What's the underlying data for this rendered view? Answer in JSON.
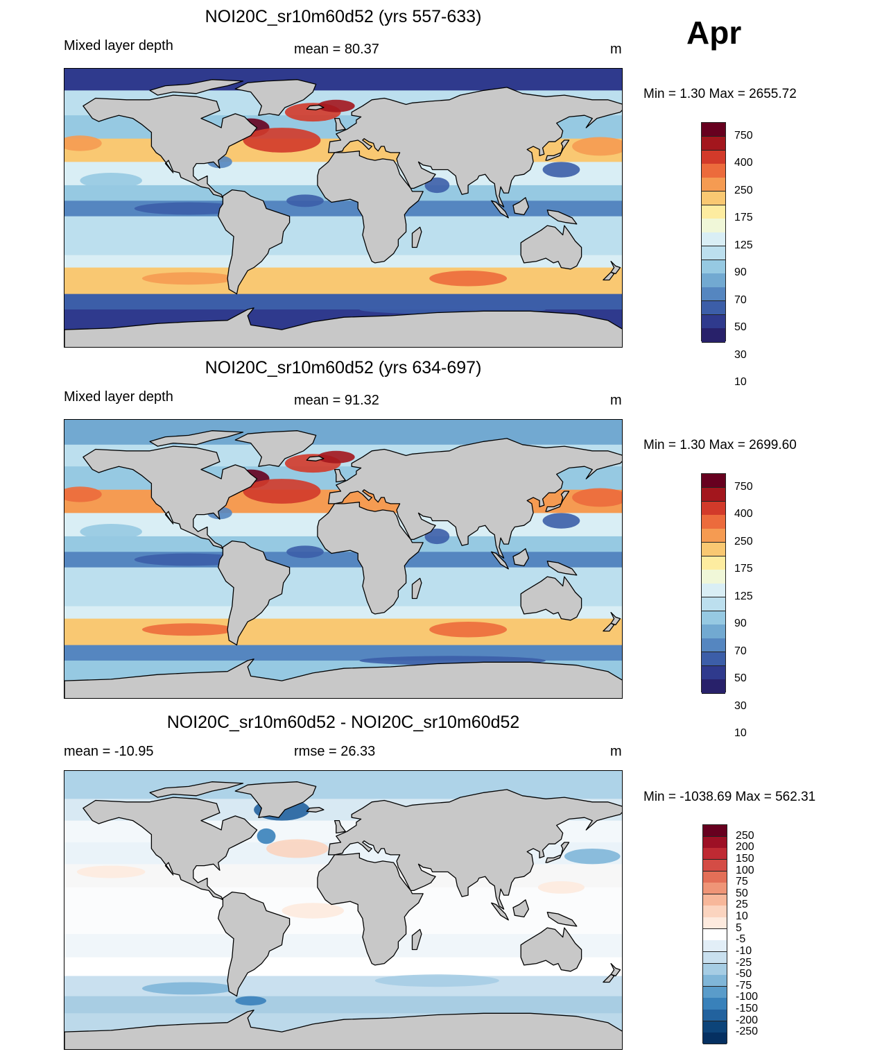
{
  "month": "Apr",
  "units": "m",
  "panels": [
    {
      "title": "NOI20C_sr10m60d52 (yrs 557-633)",
      "left_label": "Mixed layer depth",
      "center_label": "mean =  80.37",
      "minmax": "Min =    1.30 Max = 2655.72",
      "style": "abs"
    },
    {
      "title": "NOI20C_sr10m60d52 (yrs 634-697)",
      "left_label": "Mixed layer depth",
      "center_label": "mean =  91.32",
      "minmax": "Min =    1.30 Max = 2699.60",
      "style": "abs2"
    },
    {
      "title": "NOI20C_sr10m60d52 - NOI20C_sr10m60d52",
      "left_label": "mean = -10.95",
      "center_label": "rmse =  26.33",
      "minmax": "Min = -1038.69 Max = 562.31",
      "style": "diff"
    }
  ],
  "colorbar_abs": {
    "labels": [
      "750",
      "400",
      "250",
      "175",
      "125",
      "90",
      "70",
      "50",
      "30",
      "10"
    ],
    "colors": [
      "#67001f",
      "#a3161d",
      "#d23a2a",
      "#ec6b3c",
      "#f59b52",
      "#f9c872",
      "#fdeca0",
      "#f0f7d8",
      "#d9eef5",
      "#bcdfee",
      "#96c9e2",
      "#72a9d1",
      "#5586c0",
      "#3c5ea8",
      "#2f3a8d",
      "#28216a"
    ]
  },
  "colorbar_diff": {
    "labels": [
      "250",
      "200",
      "150",
      "100",
      "75",
      "50",
      "25",
      "10",
      "5",
      "-5",
      "-10",
      "-25",
      "-50",
      "-75",
      "-100",
      "-150",
      "-200",
      "-250"
    ],
    "colors": [
      "#67001f",
      "#9d1025",
      "#bf2a33",
      "#d44c45",
      "#e36f57",
      "#ef9577",
      "#f7b79a",
      "#fbd4bf",
      "#fdeade",
      "#ffffff",
      "#e2eef7",
      "#c9e0ef",
      "#a6cde4",
      "#80b6d8",
      "#5a9cca",
      "#3981ba",
      "#22629e",
      "#0d4479",
      "#053061"
    ]
  },
  "map_colors": {
    "land": "#c8c8c8",
    "coast": "#000000"
  }
}
